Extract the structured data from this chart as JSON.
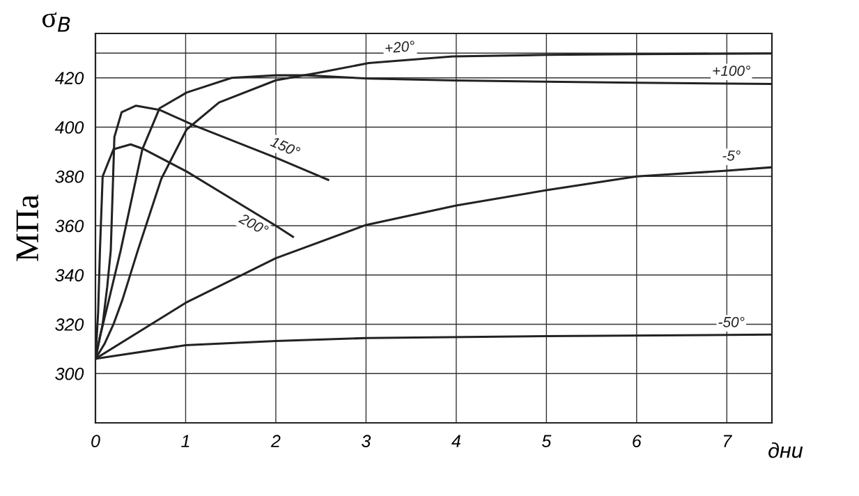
{
  "chart_data": {
    "type": "line",
    "title": "σ$_{В}$",
    "ylabel": "МПа",
    "xlabel": "дни",
    "xlim": [
      0,
      7.5
    ],
    "ylim": [
      280,
      438
    ],
    "xticks": [
      0,
      1,
      2,
      3,
      4,
      5,
      6,
      7
    ],
    "yticks": [
      300,
      320,
      340,
      360,
      380,
      400,
      420,
      {
        "value": 430,
        "label": null
      }
    ],
    "grid": true,
    "marker": "none",
    "line_style": "solid",
    "legend": false,
    "series": [
      {
        "name": "+20°",
        "color": "#222222",
        "x": [
          0,
          0.1,
          0.2,
          0.3,
          0.47,
          0.73,
          1.01,
          1.37,
          2.0,
          2.47,
          3.03,
          3.96,
          5.0,
          6.0,
          7.5
        ],
        "values": [
          306,
          312,
          320,
          330,
          350,
          379,
          399,
          410,
          419,
          422,
          426,
          428.7,
          429.3,
          429.6,
          429.9
        ]
      },
      {
        "name": "+100°",
        "color": "#222222",
        "x": [
          0,
          0.05,
          0.15,
          0.28,
          0.52,
          0.71,
          1.01,
          1.51,
          2.0,
          2.33,
          3.03,
          3.99,
          5.0,
          6.0,
          7.5
        ],
        "values": [
          306,
          315,
          330,
          350,
          391,
          407.6,
          414,
          420,
          421,
          421,
          419.7,
          418.9,
          418.4,
          418,
          417.5
        ]
      },
      {
        "name": "150°",
        "color": "#222222",
        "x": [
          0,
          0.08,
          0.13,
          0.17,
          0.21,
          0.29,
          0.45,
          0.71,
          1.1,
          2.0,
          2.58
        ],
        "values": [
          306,
          320,
          335,
          350,
          396,
          406,
          408.7,
          407,
          400.6,
          387.6,
          378.6
        ]
      },
      {
        "name": "200°",
        "color": "#222222",
        "x": [
          0,
          0.03,
          0.05,
          0.08,
          0.2,
          0.39,
          0.54,
          1.01,
          2.0,
          2.19
        ],
        "values": [
          306,
          325,
          350,
          380,
          391,
          393,
          391,
          382,
          360,
          355.5
        ]
      },
      {
        "name": "-5°",
        "color": "#222222",
        "x": [
          0,
          1,
          2,
          3,
          4,
          5,
          6,
          7,
          7.5
        ],
        "values": [
          306,
          328.7,
          346.8,
          360.3,
          368.2,
          374.4,
          380,
          382.3,
          383.7
        ]
      },
      {
        "name": "-50°",
        "color": "#222222",
        "x": [
          0,
          1,
          2,
          3,
          5,
          7.5
        ],
        "values": [
          306,
          311.5,
          313.2,
          314.4,
          315.2,
          315.8
        ]
      }
    ]
  }
}
